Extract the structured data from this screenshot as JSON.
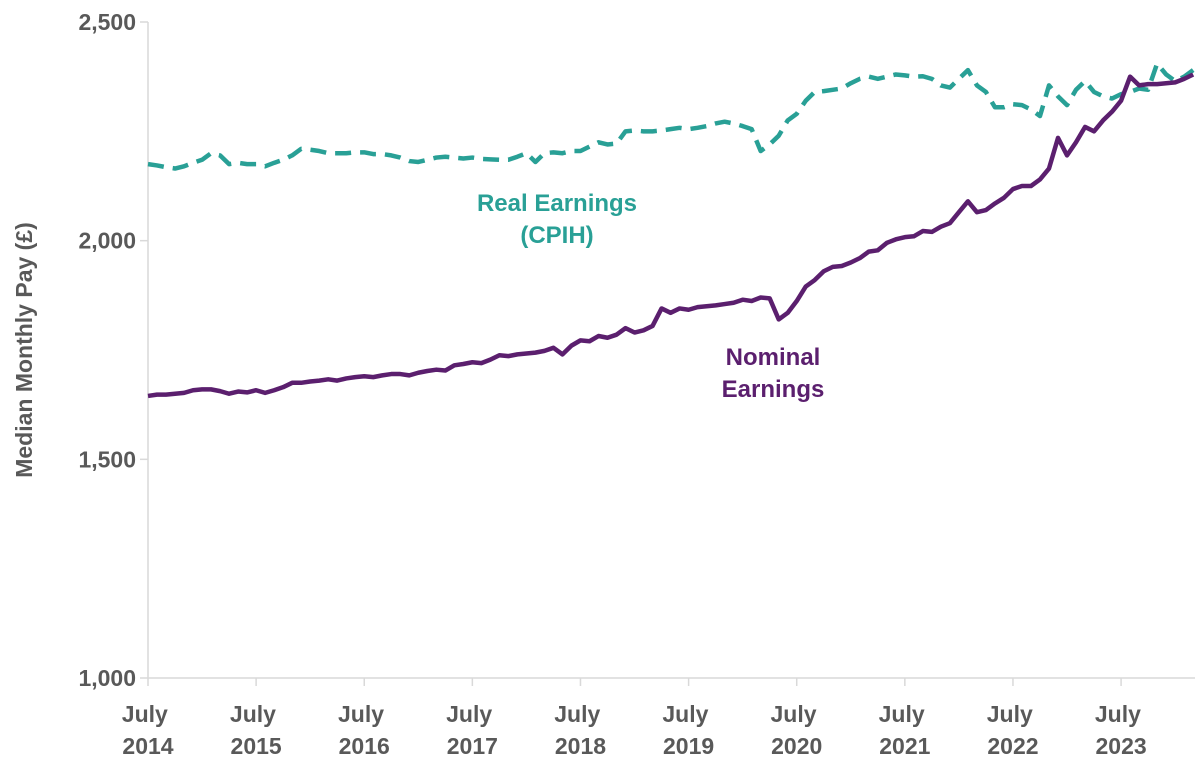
{
  "chart_data": {
    "type": "line",
    "y_label": "Median Monthly Pay (£)",
    "categories": [
      "July 2014",
      null,
      null,
      null,
      null,
      null,
      null,
      null,
      null,
      null,
      null,
      null,
      "July 2015",
      null,
      null,
      null,
      null,
      null,
      null,
      null,
      null,
      null,
      null,
      null,
      "July 2016",
      null,
      null,
      null,
      null,
      null,
      null,
      null,
      null,
      null,
      null,
      null,
      "July 2017",
      null,
      null,
      null,
      null,
      null,
      null,
      null,
      null,
      null,
      null,
      null,
      "July 2018",
      null,
      null,
      null,
      null,
      null,
      null,
      null,
      null,
      null,
      null,
      null,
      "July 2019",
      null,
      null,
      null,
      null,
      null,
      null,
      null,
      null,
      null,
      null,
      null,
      "July 2020",
      null,
      null,
      null,
      null,
      null,
      null,
      null,
      null,
      null,
      null,
      null,
      "July 2021",
      null,
      null,
      null,
      null,
      null,
      null,
      null,
      null,
      null,
      null,
      null,
      "July 2022",
      null,
      null,
      null,
      null,
      null,
      null,
      null,
      null,
      null,
      null,
      null,
      "July 2023",
      null,
      null,
      null,
      null,
      null,
      null,
      null,
      null
    ],
    "series": [
      {
        "color": "#29a096",
        "dashed": true,
        "values": [
          2175,
          2172,
          2168,
          2165,
          2170,
          2178,
          2185,
          2200,
          2195,
          2175,
          2178,
          2175,
          2175,
          2170,
          2178,
          2185,
          2195,
          2210,
          2208,
          2205,
          2200,
          2200,
          2200,
          2202,
          2202,
          2198,
          2198,
          2195,
          2190,
          2182,
          2180,
          2185,
          2190,
          2192,
          2190,
          2188,
          2190,
          2187,
          2186,
          2185,
          2185,
          2192,
          2200,
          2180,
          2200,
          2202,
          2200,
          2205,
          2205,
          2215,
          2225,
          2220,
          2222,
          2250,
          2252,
          2250,
          2250,
          2252,
          2255,
          2258,
          2255,
          2258,
          2262,
          2268,
          2272,
          2268,
          2262,
          2255,
          2205,
          2220,
          2240,
          2275,
          2290,
          2320,
          2340,
          2342,
          2345,
          2348,
          2360,
          2370,
          2375,
          2370,
          2375,
          2380,
          2378,
          2375,
          2376,
          2370,
          2355,
          2350,
          2370,
          2390,
          2355,
          2340,
          2305,
          2305,
          2312,
          2310,
          2300,
          2285,
          2355,
          2330,
          2310,
          2345,
          2365,
          2340,
          2330,
          2325,
          2335,
          2340,
          2348,
          2345,
          2405,
          2380,
          2365,
          2375,
          2390
        ]
      },
      {
        "color": "#5b1f6e",
        "dashed": false,
        "values": [
          1645,
          1648,
          1648,
          1650,
          1652,
          1658,
          1660,
          1660,
          1656,
          1650,
          1655,
          1653,
          1658,
          1652,
          1658,
          1665,
          1675,
          1675,
          1678,
          1680,
          1683,
          1680,
          1685,
          1688,
          1690,
          1688,
          1692,
          1695,
          1695,
          1692,
          1698,
          1702,
          1705,
          1703,
          1715,
          1718,
          1722,
          1720,
          1728,
          1738,
          1736,
          1740,
          1742,
          1744,
          1748,
          1755,
          1740,
          1760,
          1772,
          1770,
          1782,
          1778,
          1785,
          1800,
          1790,
          1795,
          1805,
          1845,
          1835,
          1845,
          1842,
          1848,
          1850,
          1852,
          1855,
          1858,
          1865,
          1862,
          1870,
          1868,
          1820,
          1835,
          1862,
          1895,
          1910,
          1930,
          1940,
          1942,
          1950,
          1960,
          1975,
          1978,
          1995,
          2003,
          2008,
          2010,
          2022,
          2020,
          2032,
          2040,
          2065,
          2090,
          2065,
          2070,
          2085,
          2098,
          2118,
          2125,
          2125,
          2140,
          2165,
          2235,
          2195,
          2225,
          2260,
          2250,
          2275,
          2295,
          2320,
          2375,
          2355,
          2358,
          2358,
          2360,
          2362,
          2370,
          2380
        ]
      }
    ],
    "annotations": [
      {
        "lines": [
          "Real Earnings",
          "(CPIH)"
        ],
        "color": "#29a096"
      },
      {
        "lines": [
          "Nominal",
          "Earnings"
        ],
        "color": "#5b1f6e"
      }
    ],
    "ylim": [
      1000,
      2500
    ],
    "yticks": [
      {
        "value": 1000,
        "label": "1,000"
      },
      {
        "value": 1500,
        "label": "1,500"
      },
      {
        "value": 2000,
        "label": "2,000"
      },
      {
        "value": 2500,
        "label": "2,500"
      }
    ],
    "grid": false
  }
}
